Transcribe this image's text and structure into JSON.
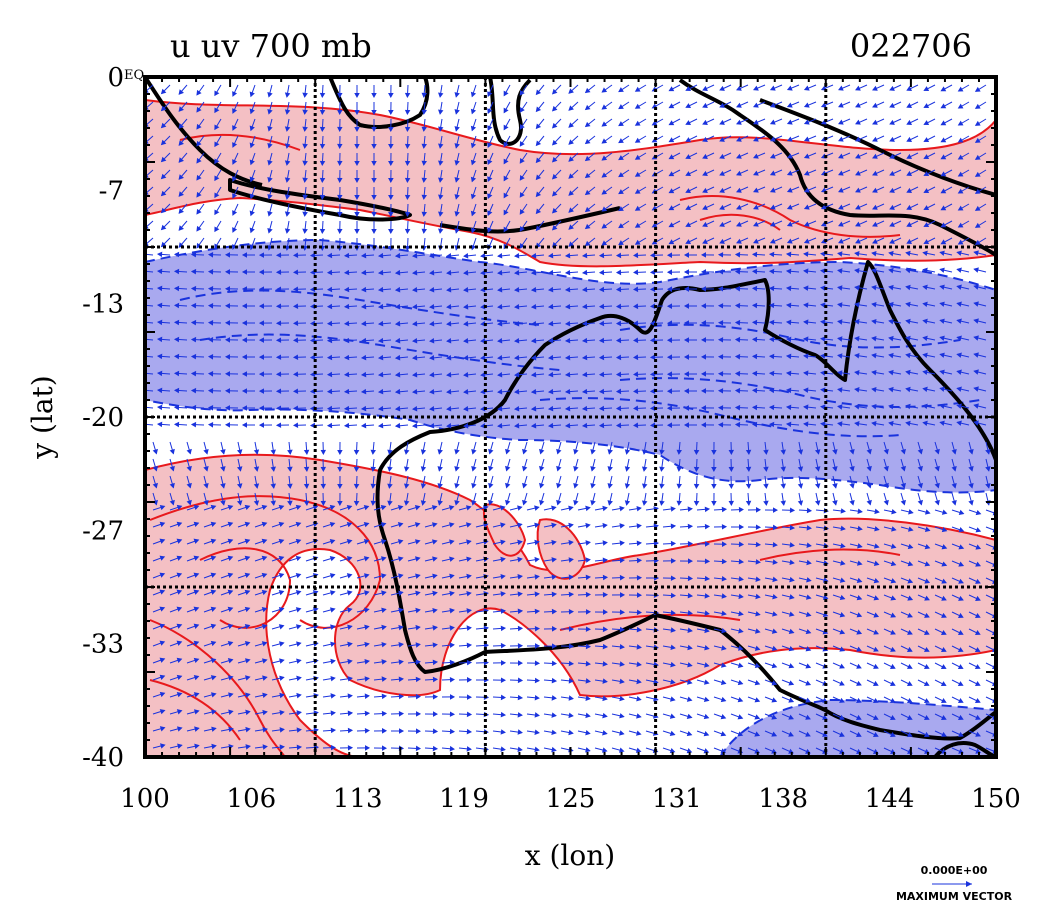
{
  "title": {
    "left": "u uv 700 mb",
    "right": "022706"
  },
  "axes": {
    "xlabel": "x (lon)",
    "ylabel": "y (lat)",
    "x_ticks": [
      "100",
      "106",
      "113",
      "119",
      "125",
      "131",
      "138",
      "144",
      "150"
    ],
    "y_ticks": [
      "0",
      "-7",
      "-13",
      "-20",
      "-27",
      "-33",
      "-40"
    ],
    "y_top_suffix": "EQ"
  },
  "map_data": {
    "lon_range": [
      100,
      150
    ],
    "lat_range": [
      -40,
      0
    ],
    "grid_lons": [
      110,
      120,
      130,
      140
    ],
    "grid_lats": [
      -10,
      -20,
      -30
    ],
    "field": "u wind component with uv vectors at 700 mb",
    "shading": {
      "positive": "#f4c0c4",
      "negative": "#a9a9ef"
    },
    "contour_colors": {
      "positive": "#e8191c",
      "negative": "#1a33dd"
    },
    "coastline_color": "#000000",
    "vector_color": "#1a33dd"
  },
  "legend": {
    "vector_value": "0.000E+00",
    "vector_label": "MAXIMUM VECTOR"
  },
  "colors": {
    "frame": "#000000",
    "background": "#ffffff"
  }
}
